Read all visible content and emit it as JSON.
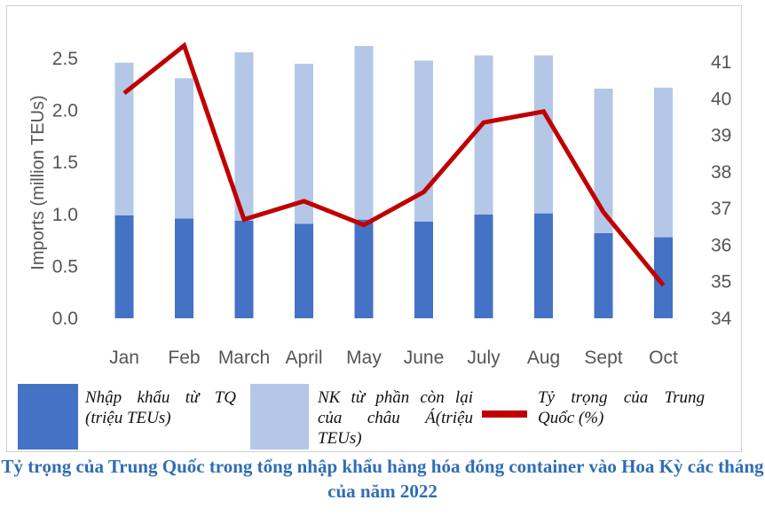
{
  "chart_data": {
    "type": "bar",
    "stacked": true,
    "title": "Tỷ trọng của Trung Quốc trong tổng nhập khẩu hàng hóa đóng container vào Hoa Kỳ các tháng của năm 2022",
    "categories": [
      "Jan",
      "Feb",
      "March",
      "April",
      "May",
      "June",
      "July",
      "Aug",
      "Sept",
      "Oct"
    ],
    "ylabel": "Imports (million TEUs)",
    "ylim": [
      0,
      2.5
    ],
    "yticks": [
      "0.0",
      "0.5",
      "1.0",
      "1.5",
      "2.0",
      "2.5"
    ],
    "y2lim": [
      34,
      41
    ],
    "y2ticks": [
      "34",
      "35",
      "36",
      "37",
      "38",
      "39",
      "40",
      "41"
    ],
    "grid": false,
    "legend_position": "bottom",
    "series": [
      {
        "name": "Nhập khẩu từ TQ (triệu TEUs)",
        "type": "bar",
        "axis": "left",
        "color": "#4472c4",
        "values": [
          0.99,
          0.96,
          0.94,
          0.91,
          0.95,
          0.93,
          1.0,
          1.01,
          0.82,
          0.78
        ]
      },
      {
        "name": "NK từ phần còn lại của châu Á(triệu TEUs)",
        "type": "bar",
        "axis": "left",
        "color": "#b4c7e7",
        "values": [
          1.47,
          1.35,
          1.62,
          1.54,
          1.67,
          1.55,
          1.53,
          1.52,
          1.39,
          1.44
        ]
      },
      {
        "name": "Tỷ trọng của Trung Quốc (%)",
        "type": "line",
        "axis": "right",
        "color": "#c00000",
        "values": [
          40.15,
          41.45,
          36.7,
          37.2,
          36.55,
          37.45,
          39.35,
          39.65,
          36.9,
          34.9
        ]
      }
    ]
  }
}
